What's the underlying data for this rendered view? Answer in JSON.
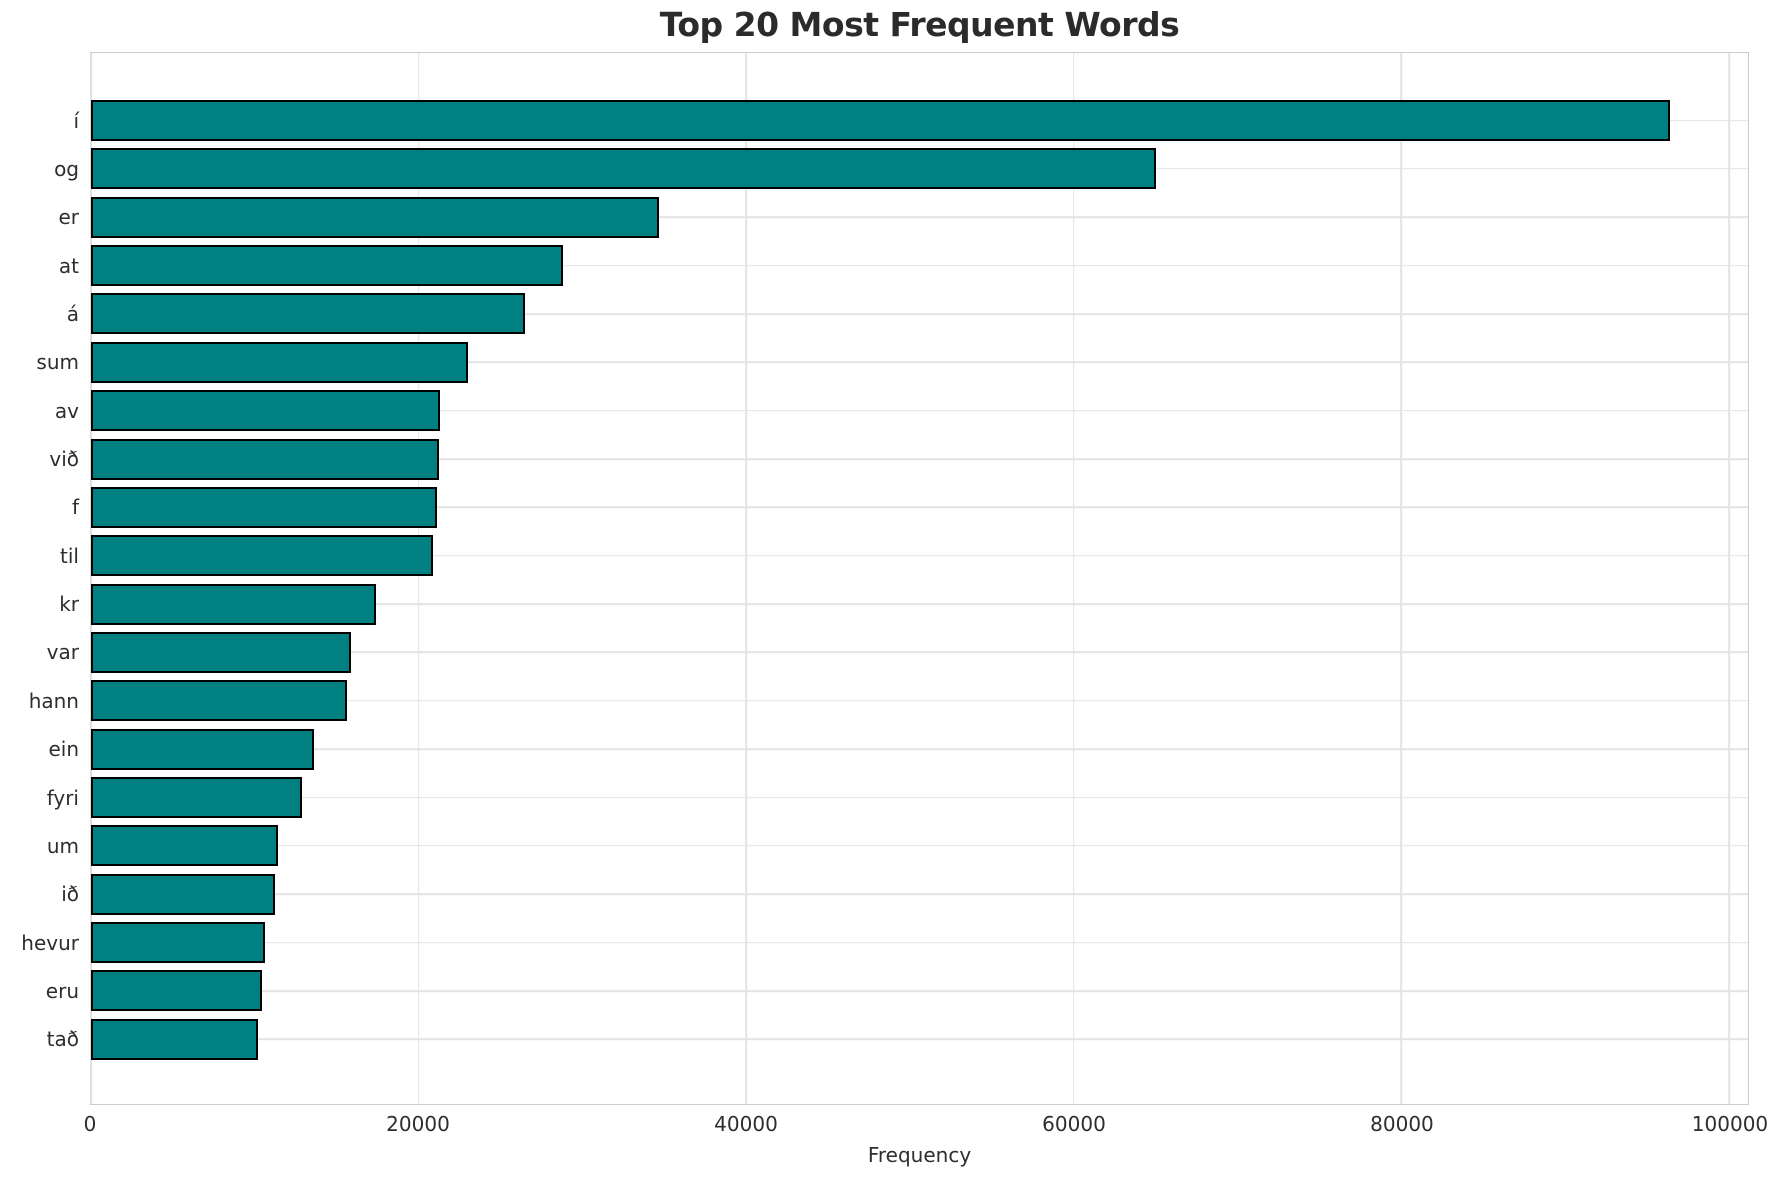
{
  "chart_data": {
    "type": "bar",
    "orientation": "horizontal",
    "title": "Top 20 Most Frequent Words",
    "xlabel": "Frequency",
    "ylabel": "",
    "categories": [
      "í",
      "og",
      "er",
      "at",
      "á",
      "sum",
      "av",
      "við",
      "f",
      "til",
      "kr",
      "var",
      "hann",
      "ein",
      "fyri",
      "um",
      "ið",
      "hevur",
      "eru",
      "tað"
    ],
    "values": [
      96400,
      65000,
      34700,
      28800,
      26500,
      23000,
      21300,
      21250,
      21100,
      20900,
      17400,
      15900,
      15600,
      13600,
      12900,
      11400,
      11250,
      10600,
      10450,
      10200
    ],
    "xlim": [
      0,
      101160
    ],
    "xticks": [
      0,
      20000,
      40000,
      60000,
      80000,
      100000
    ],
    "grid": true,
    "legend_position": "none",
    "bar_color": "#008080",
    "bar_edge_color": "#000000",
    "grid_color": "#e3e3e3",
    "spine_color": "#cccccc",
    "text_color": "#2e2e2e",
    "title_color": "#2b2b2b"
  }
}
